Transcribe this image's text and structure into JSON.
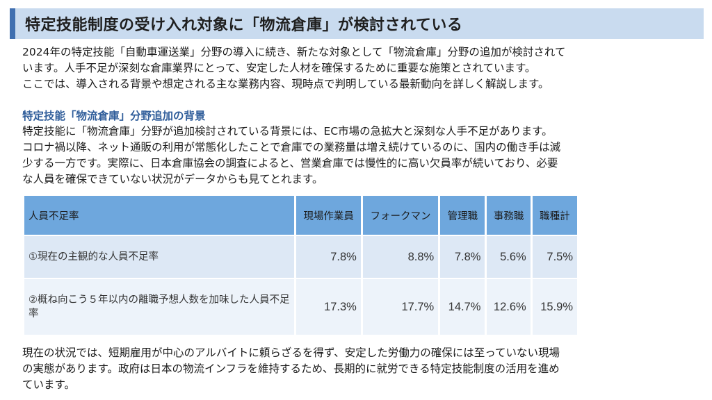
{
  "title": "特定技能制度の受け入れ対象に「物流倉庫」が検討されている",
  "intro": [
    "2024年の特定技能「自動車運送業」分野の導入に続き、新たな対象として「物流倉庫」分野の追加が検討されて",
    "います。人手不足が深刻な倉庫業界にとって、安定した人材を確保するために重要な施策とされています。",
    "ここでは、導入される背景や想定される主な業務内容、現時点で判明している最新動向を詳しく解説します。"
  ],
  "section_heading": "特定技能「物流倉庫」分野追加の背景",
  "background": [
    "特定技能に「物流倉庫」分野が追加検討されている背景には、EC市場の急拡大と深刻な人手不足があります。",
    "コロナ禍以降、ネット通販の利用が常態化したことで倉庫での業務量は増え続けているのに、国内の働き手は減",
    "少する一方です。実際に、日本倉庫協会の調査によると、営業倉庫では慢性的に高い欠員率が続いており、必要",
    "な人員を確保できていない状況がデータからも見てとれます。"
  ],
  "table": {
    "headers": [
      "人員不足率",
      "現場作業員",
      "フォークマン",
      "管理職",
      "事務職",
      "職種計"
    ],
    "rows": [
      {
        "label": "①現在の主観的な人員不足率",
        "values": [
          "7.8%",
          "8.8%",
          "7.8%",
          "5.6%",
          "7.5%"
        ]
      },
      {
        "label": "②概ね向こう５年以内の離職予想人数を加味した人員不足率",
        "values": [
          "17.3%",
          "17.7%",
          "14.7%",
          "12.6%",
          "15.9%"
        ]
      }
    ]
  },
  "conclusion": [
    "現在の状況では、短期雇用が中心のアルバイトに頼らざるを得ず、安定した労働力の確保には至っていない現場",
    "の実態があります。政府は日本の物流インフラを維持するため、長期的に就労できる特定技能制度の活用を進め",
    "ています。"
  ],
  "colors": {
    "heading_bg": "#c9dbef",
    "heading_accent": "#3f6fb0",
    "subhead_text": "#2f5d9a",
    "table_header_bg": "#6ea7dd"
  }
}
